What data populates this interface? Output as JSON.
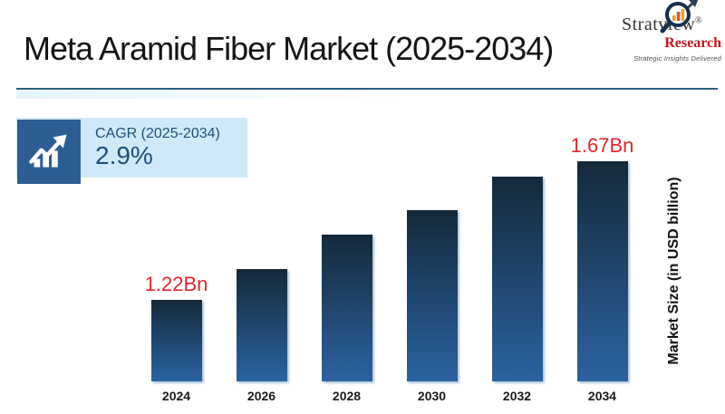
{
  "slide": {
    "title": "Meta Aramid Fiber Market (2025-2034)",
    "background_color": "#ffffff",
    "divider_color": "#2a607f"
  },
  "logo": {
    "brand": "Stratview",
    "registered_mark": "®",
    "brand_secondary": "Research",
    "tagline": "Strategic Insights Delivered",
    "brand_color": "#333333",
    "secondary_color": "#c0181d",
    "icon": "magnifier-growth-chart-icon",
    "icon_ring_color": "#16304e",
    "icon_bar_colors": [
      "#f0a33c",
      "#dd5a2b",
      "#f0a33c"
    ]
  },
  "cagr_card": {
    "label": "CAGR (2025-2034)",
    "value": "2.9%",
    "text_color": "#1f4e79",
    "background_color": "#cfe9f8",
    "icon": "growth-bars-arrow-icon",
    "icon_background_color": "#2d5e93",
    "icon_glyph_color": "#ffffff"
  },
  "chart_data": {
    "type": "bar",
    "title": "Meta Aramid Fiber Market (2025-2034)",
    "categories": [
      "2024",
      "2026",
      "2028",
      "2030",
      "2032",
      "2034"
    ],
    "values": [
      1.22,
      1.32,
      1.43,
      1.51,
      1.62,
      1.67
    ],
    "unit": "USD billion",
    "data_labels": {
      "2024": "1.22Bn",
      "2034": "1.67Bn"
    },
    "ylabel": "Market Size (in USD billion)",
    "xlabel": "",
    "value_axis_min": 0.954,
    "grid": false,
    "legend": false,
    "bar_gradient_top": "#14293a",
    "bar_gradient_bottom": "#2a63a1",
    "data_label_color": "#e8232a",
    "category_label_color": "#1a1a1a"
  }
}
